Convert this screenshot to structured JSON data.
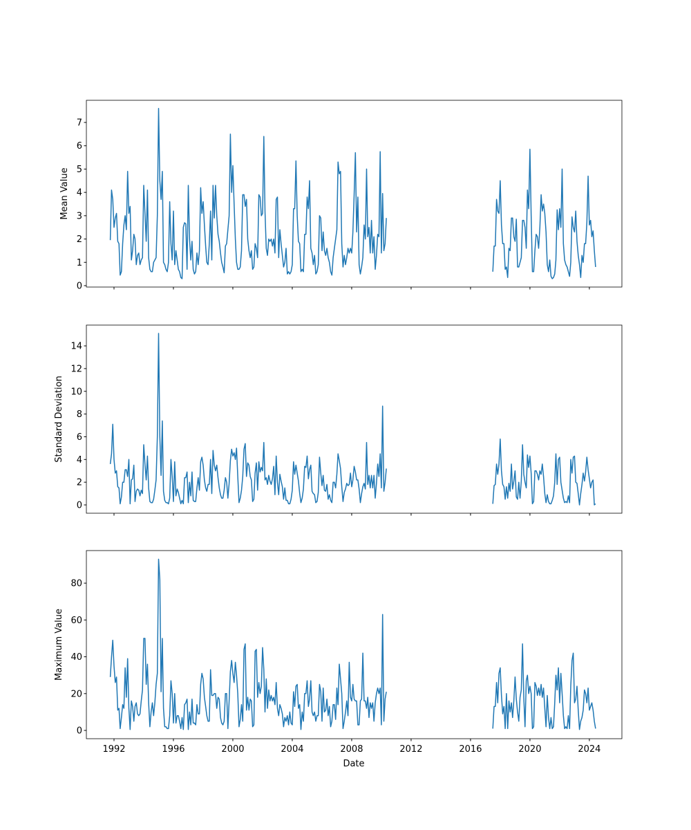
{
  "chart_data": {
    "type": "line",
    "xlabel": "Date",
    "xlim": [
      1990.14,
      2026.19
    ],
    "x_ticks": [
      "1992",
      "1996",
      "2000",
      "2004",
      "2008",
      "2012",
      "2016",
      "2020",
      "2024"
    ],
    "line_color": "#1f77b4",
    "frequency": "monthly",
    "segment_starts": [
      "1991-10",
      "2017-07"
    ],
    "subplots": [
      {
        "ylabel": "Mean Value",
        "ylim": [
          -0.06,
          7.95
        ],
        "y_ticks": [
          "0",
          "1",
          "2",
          "3",
          "4",
          "5",
          "6",
          "7"
        ],
        "segments": [
          [
            1.95,
            4.1,
            3.7,
            2.5,
            2.9,
            3.1,
            1.9,
            1.8,
            0.45,
            0.6,
            1.8,
            2.6,
            3.0,
            2.4,
            4.9,
            3.1,
            3.4,
            1.1,
            1.5,
            2.2,
            2.0,
            0.9,
            1.3,
            1.4,
            0.9,
            1.1,
            1.2,
            4.3,
            3.1,
            1.9,
            4.1,
            1.2,
            0.7,
            0.6,
            0.6,
            1.0,
            1.1,
            1.2,
            3.0,
            7.6,
            4.5,
            3.7,
            4.9,
            1.0,
            0.9,
            0.7,
            0.6,
            1.0,
            3.6,
            1.8,
            1.1,
            3.2,
            0.9,
            1.5,
            1.1,
            0.7,
            0.6,
            0.35,
            0.3,
            2.5,
            2.7,
            2.65,
            0.7,
            4.3,
            2.0,
            1.1,
            1.9,
            0.7,
            0.5,
            0.6,
            1.4,
            0.9,
            1.5,
            4.2,
            3.1,
            3.6,
            2.6,
            1.7,
            1.0,
            0.9,
            1.8,
            3.2,
            1.1,
            4.3,
            2.9,
            4.3,
            3.0,
            2.2,
            1.9,
            1.4,
            1.0,
            0.8,
            0.55,
            1.7,
            1.8,
            2.4,
            3.0,
            6.5,
            4.0,
            5.15,
            3.5,
            2.0,
            1.0,
            0.7,
            0.7,
            0.8,
            1.5,
            3.9,
            3.9,
            3.4,
            3.7,
            2.0,
            1.5,
            1.2,
            1.5,
            0.7,
            0.8,
            1.8,
            1.6,
            1.2,
            3.9,
            3.8,
            3.0,
            3.1,
            6.4,
            3.2,
            1.6,
            1.3,
            2.0,
            1.9,
            2.0,
            1.7,
            2.0,
            1.4,
            3.7,
            3.8,
            1.2,
            2.4,
            1.8,
            1.3,
            0.8,
            1.0,
            1.6,
            0.5,
            0.6,
            0.5,
            0.6,
            0.9,
            3.3,
            3.3,
            5.35,
            3.0,
            1.9,
            1.8,
            0.6,
            0.7,
            0.6,
            2.2,
            2.2,
            3.8,
            3.3,
            4.5,
            1.6,
            1.4,
            0.9,
            1.3,
            0.5,
            0.6,
            0.9,
            3.0,
            2.9,
            1.5,
            2.3,
            1.5,
            1.3,
            1.6,
            1.2,
            1.0,
            0.6,
            0.45,
            1.2,
            1.6,
            2.0,
            2.4,
            5.3,
            4.8,
            4.9,
            1.8,
            0.8,
            1.3,
            0.9,
            1.2,
            1.6,
            1.4,
            1.6,
            1.4,
            2.3,
            3.9,
            5.7,
            2.3,
            3.8,
            0.9,
            0.5,
            0.8,
            1.2,
            2.6,
            2.0,
            5.0,
            2.1,
            2.5,
            1.4,
            2.8,
            1.4,
            2.1,
            0.7,
            1.3,
            2.2,
            2.1,
            5.75,
            1.4,
            3.95,
            1.5,
            1.8,
            2.9
          ],
          [
            0.6,
            1.7,
            1.7,
            3.7,
            3.2,
            3.1,
            4.5,
            2.6,
            1.8,
            1.8,
            0.7,
            0.8,
            0.35,
            1.6,
            1.5,
            2.9,
            2.9,
            2.1,
            1.9,
            2.85,
            0.8,
            0.8,
            1.0,
            1.2,
            2.8,
            2.8,
            2.5,
            1.6,
            4.1,
            3.3,
            5.85,
            3.0,
            0.6,
            0.6,
            1.5,
            2.2,
            2.1,
            1.6,
            2.5,
            3.9,
            3.2,
            3.5,
            3.1,
            2.3,
            0.9,
            0.6,
            1.1,
            0.4,
            0.3,
            0.35,
            0.5,
            1.1,
            3.25,
            2.4,
            3.3,
            2.5,
            5.0,
            1.8,
            1.1,
            0.9,
            0.8,
            0.6,
            0.4,
            1.0,
            2.95,
            2.5,
            2.3,
            3.2,
            1.9,
            1.3,
            0.9,
            0.35,
            1.3,
            1.0,
            1.8,
            1.8,
            2.7,
            4.7,
            2.6,
            2.8,
            2.1,
            2.35,
            1.5,
            0.8
          ]
        ]
      },
      {
        "ylabel": "Standard Deviation",
        "ylim": [
          -0.73,
          15.83
        ],
        "y_ticks": [
          "0",
          "2",
          "4",
          "6",
          "8",
          "10",
          "12",
          "14"
        ],
        "segments": [
          [
            3.6,
            4.5,
            7.1,
            4.0,
            2.8,
            3.0,
            1.6,
            1.5,
            0.1,
            0.7,
            2.0,
            2.0,
            3.1,
            3.1,
            2.5,
            4.0,
            0.1,
            2.2,
            2.3,
            3.5,
            0.3,
            1.2,
            1.4,
            1.3,
            0.8,
            1.3,
            1.0,
            5.3,
            3.6,
            2.2,
            4.3,
            1.5,
            0.3,
            0.2,
            0.2,
            0.5,
            1.3,
            2.2,
            6.0,
            15.1,
            6.0,
            2.6,
            7.4,
            1.2,
            0.4,
            0.2,
            0.2,
            0.1,
            0.6,
            4.0,
            2.5,
            0.3,
            3.8,
            0.8,
            1.4,
            1.1,
            0.6,
            0.1,
            0.4,
            0.1,
            2.4,
            2.4,
            2.9,
            0.2,
            2.0,
            0.8,
            2.9,
            0.4,
            0.3,
            0.3,
            1.5,
            2.4,
            1.3,
            3.8,
            4.2,
            3.5,
            2.2,
            1.5,
            1.2,
            1.8,
            1.8,
            4.0,
            1.0,
            4.8,
            3.5,
            3.0,
            3.5,
            2.4,
            1.5,
            0.9,
            0.6,
            0.6,
            1.3,
            2.4,
            2.0,
            0.6,
            1.9,
            3.9,
            4.9,
            4.3,
            4.6,
            4.0,
            5.0,
            2.5,
            0.2,
            0.6,
            1.3,
            2.5,
            4.9,
            5.4,
            2.5,
            3.7,
            3.5,
            2.5,
            2.2,
            0.3,
            0.5,
            2.8,
            3.7,
            1.3,
            3.8,
            2.9,
            3.3,
            3.0,
            5.5,
            2.2,
            2.4,
            1.8,
            2.6,
            2.1,
            1.8,
            2.3,
            3.4,
            0.9,
            4.3,
            2.0,
            0.9,
            2.7,
            2.1,
            1.6,
            0.5,
            1.5,
            0.4,
            0.4,
            0.1,
            0.1,
            0.5,
            1.3,
            3.8,
            2.7,
            3.5,
            2.8,
            2.1,
            1.0,
            0.2,
            0.6,
            1.4,
            3.4,
            3.3,
            4.3,
            2.3,
            3.1,
            3.5,
            1.2,
            1.0,
            0.9,
            0.2,
            0.3,
            1.1,
            4.2,
            2.8,
            1.7,
            2.6,
            1.3,
            1.2,
            1.8,
            0.5,
            0.9,
            0.4,
            0.2,
            2.0,
            2.0,
            1.5,
            2.7,
            4.5,
            3.9,
            3.2,
            1.6,
            0.3,
            1.1,
            1.4,
            1.9,
            1.7,
            1.8,
            2.8,
            1.6,
            2.2,
            3.4,
            2.9,
            2.2,
            2.2,
            1.4,
            0.2,
            1.0,
            1.6,
            1.9,
            1.4,
            5.5,
            1.8,
            2.6,
            1.5,
            2.6,
            1.5,
            2.6,
            0.6,
            1.9,
            3.6,
            2.5,
            4.5,
            1.5,
            8.7,
            1.2,
            2.0,
            3.2
          ],
          [
            0.1,
            1.7,
            1.8,
            3.6,
            2.7,
            3.6,
            5.8,
            3.0,
            1.8,
            1.6,
            0.5,
            1.6,
            0.6,
            1.9,
            1.2,
            3.6,
            1.4,
            2.1,
            3.0,
            0.7,
            0.5,
            2.0,
            0.6,
            2.1,
            5.3,
            2.7,
            2.0,
            1.5,
            4.4,
            3.3,
            4.3,
            2.8,
            0.1,
            0.3,
            3.0,
            3.0,
            2.7,
            2.2,
            3.0,
            2.7,
            3.6,
            2.5,
            1.0,
            0.2,
            0.9,
            0.3,
            0.1,
            0.1,
            0.4,
            0.8,
            2.0,
            4.5,
            1.8,
            4.0,
            4.2,
            2.0,
            1.3,
            0.6,
            0.2,
            0.3,
            0.2,
            0.8,
            0.2,
            4.0,
            2.8,
            4.2,
            4.3,
            2.0,
            1.9,
            1.0,
            0.0,
            1.0,
            1.8,
            2.8,
            2.1,
            2.9,
            4.2,
            3.1,
            2.3,
            1.5,
            2.0,
            2.2,
            0.0,
            0.1
          ]
        ]
      },
      {
        "ylabel": "Maximum Value",
        "ylim": [
          -4.5,
          97.7
        ],
        "y_ticks": [
          "0",
          "20",
          "40",
          "60",
          "80"
        ],
        "segments": [
          [
            29,
            40,
            49,
            35,
            26,
            29,
            11,
            12,
            1,
            7,
            14,
            12,
            34,
            18,
            39,
            12,
            0.5,
            16,
            13,
            5,
            13,
            15,
            9,
            8,
            9,
            16,
            22,
            50,
            50,
            25,
            36,
            15,
            2,
            10,
            15,
            8,
            15,
            25,
            31,
            93,
            82,
            21,
            50,
            12,
            2,
            2,
            1,
            1,
            8,
            27,
            20,
            4,
            20,
            4,
            8,
            8,
            5,
            1,
            7,
            0.5,
            14,
            15,
            17,
            0.5,
            10,
            3,
            17,
            4,
            4,
            3,
            14,
            9,
            9,
            25,
            31,
            28,
            18,
            13,
            8,
            5,
            5,
            33,
            19,
            19,
            20,
            20,
            12,
            18,
            17,
            7,
            4,
            3,
            5,
            20,
            20,
            1,
            16,
            32,
            38,
            31,
            26,
            37,
            30,
            20,
            2,
            6,
            14,
            5,
            44,
            47,
            11,
            18,
            11,
            17,
            16,
            2,
            3,
            43,
            44,
            18,
            26,
            20,
            24,
            45,
            33,
            10,
            28,
            12,
            22,
            16,
            19,
            16,
            18,
            14,
            26,
            12,
            8,
            14,
            12,
            9,
            2,
            7,
            5,
            8,
            3,
            10,
            4,
            3,
            21,
            13,
            24,
            25,
            12,
            14,
            0.5,
            10,
            5,
            20,
            20,
            27,
            13,
            17,
            27,
            10,
            8,
            10,
            5,
            8,
            8,
            25,
            21,
            5,
            23,
            10,
            11,
            17,
            8,
            13,
            2,
            5,
            14,
            14,
            6,
            23,
            14,
            36,
            28,
            20,
            1,
            5,
            10,
            16,
            8,
            37,
            18,
            16,
            25,
            17,
            16,
            16,
            3,
            3,
            16,
            17,
            42,
            16,
            16,
            12,
            18,
            7,
            15,
            12,
            15,
            5,
            15,
            20,
            23,
            20,
            23,
            3,
            63,
            5,
            17,
            21
          ],
          [
            1,
            13,
            13,
            26,
            15,
            31,
            34,
            19,
            9,
            13,
            1,
            20,
            1,
            16,
            10,
            15,
            7,
            16,
            29,
            17,
            10,
            5,
            18,
            22,
            47,
            18,
            2,
            27,
            30,
            20,
            24,
            20,
            1,
            2,
            26,
            24,
            19,
            23,
            19,
            25,
            18,
            23,
            12,
            2,
            19,
            7,
            1,
            7,
            1,
            2,
            15,
            30,
            22,
            34,
            15,
            31,
            20,
            8,
            1,
            2,
            1,
            8,
            1,
            24,
            38,
            42,
            15,
            17,
            24,
            11,
            0.5,
            5,
            7,
            11,
            22,
            20,
            15,
            23,
            11,
            13,
            15,
            11,
            5,
            1
          ]
        ]
      }
    ]
  }
}
